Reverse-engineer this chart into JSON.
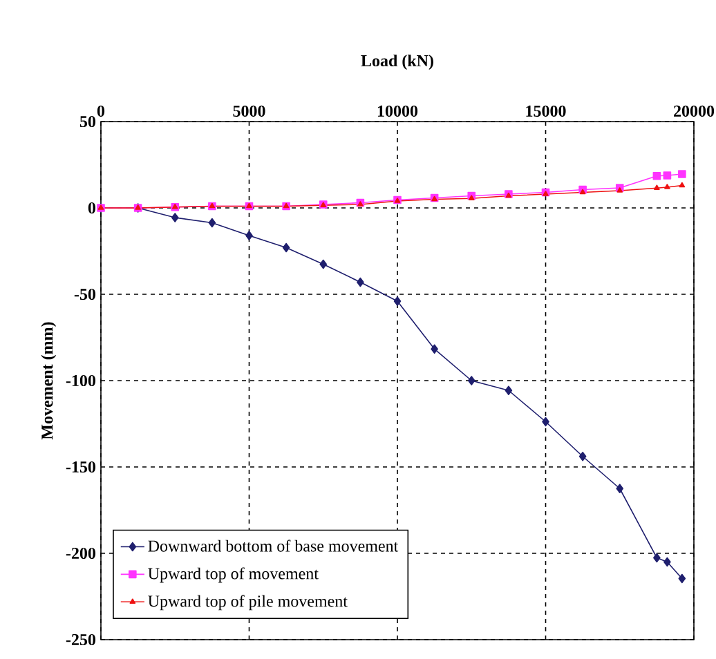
{
  "chart_data": {
    "type": "line",
    "xlabel": "Load (kN)",
    "ylabel": "Movement (mm)",
    "x": [
      0,
      1250,
      2500,
      3750,
      5000,
      6250,
      7500,
      8750,
      10000,
      11250,
      12500,
      13750,
      15000,
      16250,
      17500,
      18750,
      19100,
      19600
    ],
    "series": [
      {
        "name": "Downward bottom of base movement",
        "color": "#1f1f6e",
        "marker": "diamond",
        "values": [
          0,
          0,
          -5.6,
          -8.6,
          -16,
          -23,
          -32.6,
          -43,
          -54,
          -81.7,
          -100,
          -105.7,
          -123.8,
          -143.9,
          -162.5,
          -202.6,
          -205,
          -214.6
        ]
      },
      {
        "name": "Upward top of movement",
        "color": "#ff33ff",
        "marker": "square",
        "values": [
          0,
          0,
          0.5,
          1,
          1,
          1,
          2,
          3,
          4.6,
          5.8,
          7,
          8,
          9,
          10.6,
          11.6,
          18.5,
          18.8,
          19.6
        ]
      },
      {
        "name": "Upward top of pile movement",
        "color": "#ee1111",
        "marker": "triangle",
        "values": [
          0,
          0,
          0.5,
          1,
          1,
          1,
          1.5,
          2,
          4,
          5,
          5.5,
          7,
          8,
          9,
          10,
          11.5,
          12,
          13
        ]
      }
    ],
    "xlim": [
      0,
      20000
    ],
    "xticks": [
      0,
      5000,
      10000,
      15000,
      20000
    ],
    "ylim": [
      -250,
      50
    ],
    "yticks": [
      -250,
      -200,
      -150,
      -100,
      -50,
      0,
      50
    ],
    "grid": true,
    "legend": "bottom left",
    "line_style": "solid"
  }
}
